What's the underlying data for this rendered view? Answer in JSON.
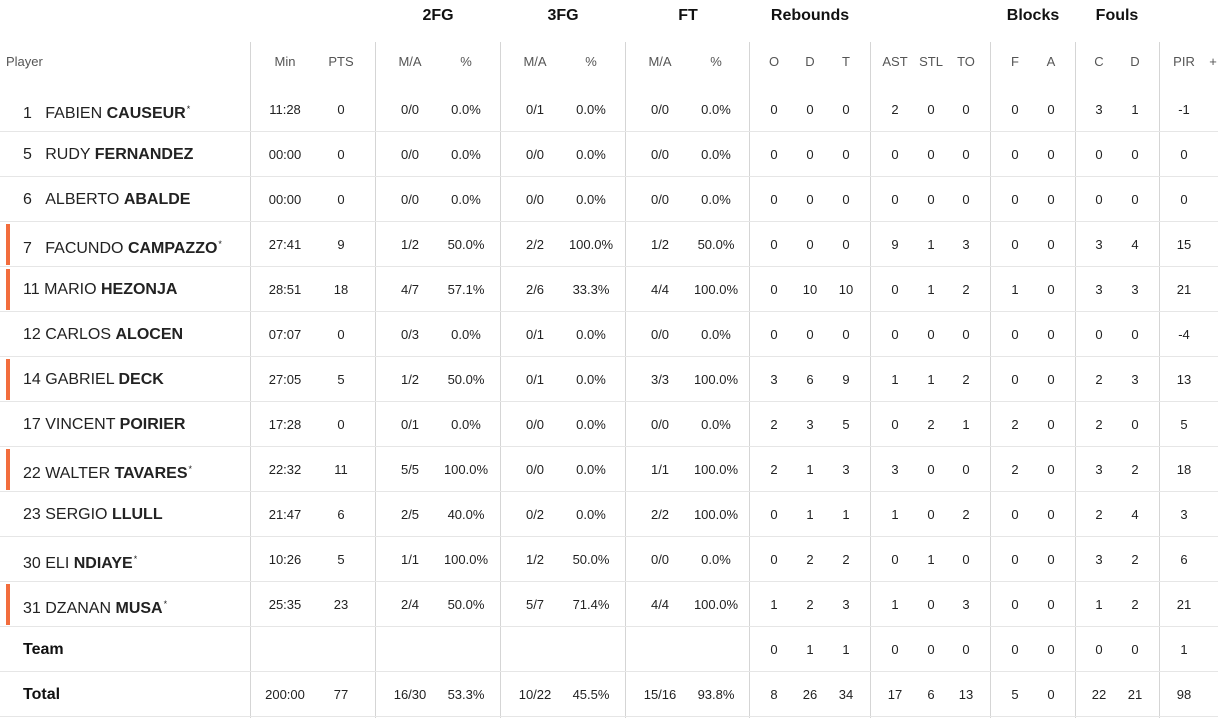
{
  "group_headers": [
    {
      "id": "2fg",
      "label": "2FG"
    },
    {
      "id": "3fg",
      "label": "3FG"
    },
    {
      "id": "ft",
      "label": "FT"
    },
    {
      "id": "reb",
      "label": "Rebounds"
    },
    {
      "id": "blk",
      "label": "Blocks"
    },
    {
      "id": "fouls",
      "label": "Fouls"
    }
  ],
  "columns": {
    "player": "Player",
    "min": "Min",
    "pts": "PTS",
    "fg2_ma": "M/A",
    "fg2_pct": "%",
    "fg3_ma": "M/A",
    "fg3_pct": "%",
    "ft_ma": "M/A",
    "ft_pct": "%",
    "reb_o": "O",
    "reb_d": "D",
    "reb_t": "T",
    "ast": "AST",
    "stl": "STL",
    "to": "TO",
    "blk_f": "F",
    "blk_a": "A",
    "foul_c": "C",
    "foul_d": "D",
    "pir": "PIR",
    "more": "+"
  },
  "accent_color": "#f26d3d",
  "players": [
    {
      "num": "1",
      "first": "FABIEN",
      "last": "CAUSEUR",
      "star": true,
      "starter": false,
      "min": "11:28",
      "pts": "0",
      "fg2_ma": "0/0",
      "fg2_pct": "0.0%",
      "fg3_ma": "0/1",
      "fg3_pct": "0.0%",
      "ft_ma": "0/0",
      "ft_pct": "0.0%",
      "reb_o": "0",
      "reb_d": "0",
      "reb_t": "0",
      "ast": "2",
      "stl": "0",
      "to": "0",
      "blk_f": "0",
      "blk_a": "0",
      "foul_c": "3",
      "foul_d": "1",
      "pir": "-1"
    },
    {
      "num": "5",
      "first": "RUDY",
      "last": "FERNANDEZ",
      "star": false,
      "starter": false,
      "min": "00:00",
      "pts": "0",
      "fg2_ma": "0/0",
      "fg2_pct": "0.0%",
      "fg3_ma": "0/0",
      "fg3_pct": "0.0%",
      "ft_ma": "0/0",
      "ft_pct": "0.0%",
      "reb_o": "0",
      "reb_d": "0",
      "reb_t": "0",
      "ast": "0",
      "stl": "0",
      "to": "0",
      "blk_f": "0",
      "blk_a": "0",
      "foul_c": "0",
      "foul_d": "0",
      "pir": "0"
    },
    {
      "num": "6",
      "first": "ALBERTO",
      "last": "ABALDE",
      "star": false,
      "starter": false,
      "min": "00:00",
      "pts": "0",
      "fg2_ma": "0/0",
      "fg2_pct": "0.0%",
      "fg3_ma": "0/0",
      "fg3_pct": "0.0%",
      "ft_ma": "0/0",
      "ft_pct": "0.0%",
      "reb_o": "0",
      "reb_d": "0",
      "reb_t": "0",
      "ast": "0",
      "stl": "0",
      "to": "0",
      "blk_f": "0",
      "blk_a": "0",
      "foul_c": "0",
      "foul_d": "0",
      "pir": "0"
    },
    {
      "num": "7",
      "first": "FACUNDO",
      "last": "CAMPAZZO",
      "star": true,
      "starter": true,
      "min": "27:41",
      "pts": "9",
      "fg2_ma": "1/2",
      "fg2_pct": "50.0%",
      "fg3_ma": "2/2",
      "fg3_pct": "100.0%",
      "ft_ma": "1/2",
      "ft_pct": "50.0%",
      "reb_o": "0",
      "reb_d": "0",
      "reb_t": "0",
      "ast": "9",
      "stl": "1",
      "to": "3",
      "blk_f": "0",
      "blk_a": "0",
      "foul_c": "3",
      "foul_d": "4",
      "pir": "15"
    },
    {
      "num": "11",
      "first": "MARIO",
      "last": "HEZONJA",
      "star": false,
      "starter": true,
      "min": "28:51",
      "pts": "18",
      "fg2_ma": "4/7",
      "fg2_pct": "57.1%",
      "fg3_ma": "2/6",
      "fg3_pct": "33.3%",
      "ft_ma": "4/4",
      "ft_pct": "100.0%",
      "reb_o": "0",
      "reb_d": "10",
      "reb_t": "10",
      "ast": "0",
      "stl": "1",
      "to": "2",
      "blk_f": "1",
      "blk_a": "0",
      "foul_c": "3",
      "foul_d": "3",
      "pir": "21"
    },
    {
      "num": "12",
      "first": "CARLOS",
      "last": "ALOCEN",
      "star": false,
      "starter": false,
      "min": "07:07",
      "pts": "0",
      "fg2_ma": "0/3",
      "fg2_pct": "0.0%",
      "fg3_ma": "0/1",
      "fg3_pct": "0.0%",
      "ft_ma": "0/0",
      "ft_pct": "0.0%",
      "reb_o": "0",
      "reb_d": "0",
      "reb_t": "0",
      "ast": "0",
      "stl": "0",
      "to": "0",
      "blk_f": "0",
      "blk_a": "0",
      "foul_c": "0",
      "foul_d": "0",
      "pir": "-4"
    },
    {
      "num": "14",
      "first": "GABRIEL",
      "last": "DECK",
      "star": false,
      "starter": true,
      "min": "27:05",
      "pts": "5",
      "fg2_ma": "1/2",
      "fg2_pct": "50.0%",
      "fg3_ma": "0/1",
      "fg3_pct": "0.0%",
      "ft_ma": "3/3",
      "ft_pct": "100.0%",
      "reb_o": "3",
      "reb_d": "6",
      "reb_t": "9",
      "ast": "1",
      "stl": "1",
      "to": "2",
      "blk_f": "0",
      "blk_a": "0",
      "foul_c": "2",
      "foul_d": "3",
      "pir": "13"
    },
    {
      "num": "17",
      "first": "VINCENT",
      "last": "POIRIER",
      "star": false,
      "starter": false,
      "min": "17:28",
      "pts": "0",
      "fg2_ma": "0/1",
      "fg2_pct": "0.0%",
      "fg3_ma": "0/0",
      "fg3_pct": "0.0%",
      "ft_ma": "0/0",
      "ft_pct": "0.0%",
      "reb_o": "2",
      "reb_d": "3",
      "reb_t": "5",
      "ast": "0",
      "stl": "2",
      "to": "1",
      "blk_f": "2",
      "blk_a": "0",
      "foul_c": "2",
      "foul_d": "0",
      "pir": "5"
    },
    {
      "num": "22",
      "first": "WALTER",
      "last": "TAVARES",
      "star": true,
      "starter": true,
      "min": "22:32",
      "pts": "11",
      "fg2_ma": "5/5",
      "fg2_pct": "100.0%",
      "fg3_ma": "0/0",
      "fg3_pct": "0.0%",
      "ft_ma": "1/1",
      "ft_pct": "100.0%",
      "reb_o": "2",
      "reb_d": "1",
      "reb_t": "3",
      "ast": "3",
      "stl": "0",
      "to": "0",
      "blk_f": "2",
      "blk_a": "0",
      "foul_c": "3",
      "foul_d": "2",
      "pir": "18"
    },
    {
      "num": "23",
      "first": "SERGIO",
      "last": "LLULL",
      "star": false,
      "starter": false,
      "min": "21:47",
      "pts": "6",
      "fg2_ma": "2/5",
      "fg2_pct": "40.0%",
      "fg3_ma": "0/2",
      "fg3_pct": "0.0%",
      "ft_ma": "2/2",
      "ft_pct": "100.0%",
      "reb_o": "0",
      "reb_d": "1",
      "reb_t": "1",
      "ast": "1",
      "stl": "0",
      "to": "2",
      "blk_f": "0",
      "blk_a": "0",
      "foul_c": "2",
      "foul_d": "4",
      "pir": "3"
    },
    {
      "num": "30",
      "first": "ELI",
      "last": "NDIAYE",
      "star": true,
      "starter": false,
      "min": "10:26",
      "pts": "5",
      "fg2_ma": "1/1",
      "fg2_pct": "100.0%",
      "fg3_ma": "1/2",
      "fg3_pct": "50.0%",
      "ft_ma": "0/0",
      "ft_pct": "0.0%",
      "reb_o": "0",
      "reb_d": "2",
      "reb_t": "2",
      "ast": "0",
      "stl": "1",
      "to": "0",
      "blk_f": "0",
      "blk_a": "0",
      "foul_c": "3",
      "foul_d": "2",
      "pir": "6"
    },
    {
      "num": "31",
      "first": "DZANAN",
      "last": "MUSA",
      "star": true,
      "starter": true,
      "min": "25:35",
      "pts": "23",
      "fg2_ma": "2/4",
      "fg2_pct": "50.0%",
      "fg3_ma": "5/7",
      "fg3_pct": "71.4%",
      "ft_ma": "4/4",
      "ft_pct": "100.0%",
      "reb_o": "1",
      "reb_d": "2",
      "reb_t": "3",
      "ast": "1",
      "stl": "0",
      "to": "3",
      "blk_f": "0",
      "blk_a": "0",
      "foul_c": "1",
      "foul_d": "2",
      "pir": "21"
    }
  ],
  "team": {
    "label": "Team",
    "min": "",
    "pts": "",
    "fg2_ma": "",
    "fg2_pct": "",
    "fg3_ma": "",
    "fg3_pct": "",
    "ft_ma": "",
    "ft_pct": "",
    "reb_o": "0",
    "reb_d": "1",
    "reb_t": "1",
    "ast": "0",
    "stl": "0",
    "to": "0",
    "blk_f": "0",
    "blk_a": "0",
    "foul_c": "0",
    "foul_d": "0",
    "pir": "1"
  },
  "total": {
    "label": "Total",
    "min": "200:00",
    "pts": "77",
    "fg2_ma": "16/30",
    "fg2_pct": "53.3%",
    "fg3_ma": "10/22",
    "fg3_pct": "45.5%",
    "ft_ma": "15/16",
    "ft_pct": "93.8%",
    "reb_o": "8",
    "reb_d": "26",
    "reb_t": "34",
    "ast": "17",
    "stl": "6",
    "to": "13",
    "blk_f": "5",
    "blk_a": "0",
    "foul_c": "22",
    "foul_d": "21",
    "pir": "98"
  }
}
